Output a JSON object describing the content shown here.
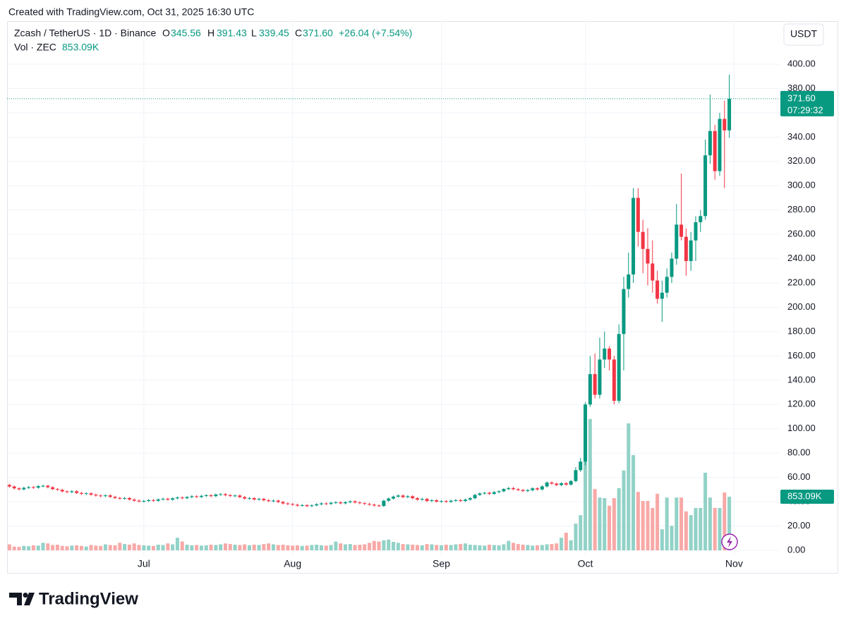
{
  "created": "Created with TradingView.com, Oct 31, 2025 16:30 UTC",
  "brand": "TradingView",
  "currency_button": "USDT",
  "chart_data": {
    "type": "candlestick",
    "symbol": "Zcash / TetherUS · 1D · Binance",
    "ohlc_letters": [
      "O",
      "H",
      "L",
      "C"
    ],
    "last_close_label": "371.60",
    "change": "+26.04 (+7.54%)",
    "volume_name": "Vol · ZEC",
    "last_volume_label": "853.09K",
    "countdown": "07:29:32",
    "up_color": "#089981",
    "down_color": "#f23645",
    "volume_up_color": "#92d2c7",
    "volume_down_color": "#f7a9a7",
    "grid": true,
    "xlim": [
      -0.5,
      160.5
    ],
    "xticks": [
      {
        "value": 28,
        "label": "Jul"
      },
      {
        "value": 59,
        "label": "Aug"
      },
      {
        "value": 90,
        "label": "Sep"
      },
      {
        "value": 120,
        "label": "Oct"
      },
      {
        "value": 151,
        "label": "Nov"
      }
    ],
    "ylim": [
      0,
      435.4
    ],
    "yticks": [
      {
        "value": 0,
        "label": "0.00"
      },
      {
        "value": 20,
        "label": "20.00"
      },
      {
        "value": 40,
        "label": "40.00"
      },
      {
        "value": 60,
        "label": "60.00"
      },
      {
        "value": 80,
        "label": "80.00"
      },
      {
        "value": 100,
        "label": "100.00"
      },
      {
        "value": 120,
        "label": "120.00"
      },
      {
        "value": 140,
        "label": "140.00"
      },
      {
        "value": 160,
        "label": "160.00"
      },
      {
        "value": 180,
        "label": "180.00"
      },
      {
        "value": 200,
        "label": "200.00"
      },
      {
        "value": 220,
        "label": "220.00"
      },
      {
        "value": 240,
        "label": "240.00"
      },
      {
        "value": 260,
        "label": "260.00"
      },
      {
        "value": 280,
        "label": "280.00"
      },
      {
        "value": 300,
        "label": "300.00"
      },
      {
        "value": 320,
        "label": "320.00"
      },
      {
        "value": 340,
        "label": "340.00"
      },
      {
        "value": 360,
        "label": "360.00"
      },
      {
        "value": 380,
        "label": "380.00"
      },
      {
        "value": 400,
        "label": "400.00"
      }
    ],
    "y2lim": [
      0,
      8420000
    ],
    "open": [
      53.8,
      52.5,
      51.0,
      50.2,
      51.4,
      52.0,
      51.6,
      52.8,
      53.1,
      51.9,
      50.4,
      49.8,
      48.5,
      47.9,
      48.6,
      47.2,
      46.5,
      46.9,
      45.8,
      45.1,
      44.6,
      45.2,
      44.0,
      43.1,
      42.5,
      43.0,
      41.8,
      40.9,
      40.2,
      40.6,
      41.3,
      40.8,
      41.9,
      42.4,
      41.7,
      42.8,
      43.5,
      42.9,
      43.8,
      44.5,
      43.9,
      44.8,
      45.3,
      44.6,
      45.9,
      46.2,
      45.4,
      44.7,
      45.1,
      43.8,
      42.6,
      42.9,
      41.8,
      42.3,
      41.2,
      40.5,
      40.9,
      39.8,
      38.6,
      38.1,
      37.5,
      36.8,
      37.2,
      36.4,
      37.0,
      37.9,
      38.6,
      38.2,
      39.1,
      39.5,
      38.7,
      39.6,
      40.3,
      39.4,
      38.8,
      38.2,
      37.6,
      36.9,
      36.5,
      40.8,
      42.6,
      44.2,
      45.1,
      43.8,
      44.5,
      42.9,
      41.7,
      42.3,
      40.6,
      41.2,
      40.1,
      40.5,
      39.9,
      40.8,
      41.3,
      40.6,
      41.7,
      42.9,
      45.6,
      46.8,
      47.3,
      46.5,
      47.9,
      48.6,
      50.4,
      51.2,
      50.3,
      49.6,
      48.8,
      49.5,
      51.0,
      50.1,
      52.6,
      55.8,
      54.9,
      53.7,
      55.2,
      54.1,
      57.0,
      66.0,
      73,
      120,
      145,
      128,
      157,
      166,
      157,
      123,
      178,
      215,
      227,
      290,
      262,
      248,
      236,
      222,
      207,
      212,
      225,
      240,
      268,
      258,
      238,
      255,
      270,
      275,
      325,
      345,
      312,
      355,
      345.56
    ],
    "high": [
      54.7,
      53.4,
      51.9,
      52.3,
      52.9,
      52.9,
      53.7,
      54.0,
      54.0,
      52.8,
      51.3,
      50.7,
      49.4,
      49.5,
      49.5,
      48.1,
      47.8,
      47.8,
      46.7,
      46.0,
      46.1,
      46.1,
      44.9,
      44.0,
      43.9,
      43.9,
      42.7,
      41.8,
      41.5,
      42.2,
      42.2,
      42.8,
      43.3,
      43.3,
      43.7,
      44.4,
      44.4,
      44.7,
      45.4,
      45.4,
      45.7,
      46.2,
      46.2,
      46.8,
      47.1,
      47.1,
      46.3,
      46.0,
      46.0,
      44.7,
      43.8,
      43.8,
      43.2,
      43.2,
      42.1,
      41.8,
      41.8,
      40.7,
      39.5,
      39.0,
      38.4,
      38.1,
      38.1,
      37.9,
      38.8,
      39.5,
      39.5,
      40.0,
      40.4,
      40.4,
      40.5,
      41.2,
      41.2,
      40.3,
      39.7,
      39.1,
      38.5,
      37.8,
      41.7,
      43.5,
      45.1,
      46.0,
      46.0,
      45.4,
      45.4,
      43.8,
      43.2,
      43.2,
      42.1,
      42.1,
      41.4,
      41.4,
      41.7,
      42.2,
      42.2,
      42.6,
      43.8,
      46.5,
      47.7,
      48.2,
      48.2,
      48.8,
      49.5,
      51.3,
      52.1,
      52.1,
      51.2,
      50.5,
      50.4,
      51.9,
      51.9,
      53.5,
      56.7,
      56.7,
      55.8,
      56.1,
      56.1,
      57.9,
      68.5,
      76.0,
      122,
      160,
      162,
      175,
      180,
      168,
      160,
      186,
      225,
      245,
      298,
      298,
      272,
      265,
      255,
      230,
      222,
      232,
      245,
      285,
      310,
      265,
      262,
      275,
      280,
      338,
      375,
      350,
      360,
      370,
      391.43
    ],
    "low": [
      51.6,
      50.1,
      49.3,
      49.3,
      50.5,
      50.7,
      50.7,
      51.9,
      51.0,
      49.5,
      48.9,
      47.6,
      47.0,
      47.0,
      46.3,
      45.6,
      45.6,
      44.9,
      44.2,
      43.7,
      43.7,
      43.1,
      42.2,
      41.6,
      41.6,
      40.9,
      40.0,
      39.3,
      39.3,
      39.7,
      39.9,
      39.9,
      41.0,
      40.8,
      40.8,
      41.9,
      42.0,
      42.0,
      42.9,
      43.0,
      43.0,
      43.9,
      43.7,
      43.7,
      45.0,
      44.5,
      43.8,
      43.8,
      42.9,
      41.7,
      41.7,
      40.9,
      40.9,
      40.3,
      39.6,
      39.6,
      38.9,
      37.7,
      37.2,
      36.6,
      35.9,
      35.9,
      35.5,
      35.5,
      36.1,
      37.0,
      37.3,
      37.3,
      38.2,
      37.8,
      37.8,
      38.7,
      38.5,
      37.9,
      37.3,
      36.7,
      36.0,
      35.6,
      35.6,
      39.9,
      41.7,
      43.3,
      42.9,
      42.9,
      42.0,
      40.8,
      40.8,
      39.7,
      39.7,
      39.2,
      39.2,
      39.0,
      39.0,
      39.9,
      39.7,
      39.7,
      40.8,
      42.0,
      44.7,
      45.9,
      45.6,
      45.6,
      47.0,
      47.7,
      49.5,
      49.4,
      48.7,
      47.9,
      47.9,
      48.6,
      49.2,
      49.2,
      51.7,
      54.0,
      52.8,
      52.8,
      53.2,
      53.2,
      56.0,
      64.5,
      70,
      118,
      125,
      125,
      150,
      148,
      120,
      121,
      148,
      208,
      220,
      250,
      228,
      218,
      212,
      203,
      188,
      208,
      220,
      235,
      255,
      226,
      230,
      238,
      262,
      272,
      318,
      305,
      308,
      298,
      339.45
    ],
    "close": [
      52.5,
      51.0,
      50.2,
      51.4,
      52.0,
      51.6,
      52.8,
      53.1,
      51.9,
      50.4,
      49.8,
      48.5,
      47.9,
      48.6,
      47.2,
      46.5,
      46.9,
      45.8,
      45.1,
      44.6,
      45.2,
      44.0,
      43.1,
      42.5,
      43.0,
      41.8,
      40.9,
      40.2,
      40.6,
      41.3,
      40.8,
      41.9,
      42.4,
      41.7,
      42.8,
      43.5,
      42.9,
      43.8,
      44.5,
      43.9,
      44.8,
      45.3,
      44.6,
      45.9,
      46.2,
      45.4,
      44.7,
      45.1,
      43.8,
      42.6,
      42.9,
      41.8,
      42.3,
      41.2,
      40.5,
      40.9,
      39.8,
      38.6,
      38.1,
      37.5,
      36.8,
      37.2,
      36.4,
      37.0,
      37.9,
      38.6,
      38.2,
      39.1,
      39.5,
      38.7,
      39.6,
      40.3,
      39.4,
      38.8,
      38.2,
      37.6,
      36.9,
      36.5,
      40.8,
      42.6,
      44.2,
      45.1,
      43.8,
      44.5,
      42.9,
      41.7,
      42.3,
      40.6,
      41.2,
      40.1,
      40.5,
      39.9,
      40.8,
      41.3,
      40.6,
      41.7,
      42.9,
      45.6,
      46.8,
      47.3,
      46.5,
      47.9,
      48.6,
      50.4,
      51.2,
      50.3,
      49.6,
      48.8,
      49.5,
      51.0,
      50.1,
      52.6,
      55.8,
      54.9,
      53.7,
      55.2,
      54.1,
      57.0,
      66.0,
      73.0,
      120,
      145,
      128,
      157,
      166,
      157,
      123,
      178,
      215,
      227,
      290,
      262,
      248,
      236,
      222,
      207,
      212,
      225,
      240,
      268,
      258,
      238,
      255,
      270,
      275,
      325,
      345,
      312,
      355,
      345.56,
      371.6
    ],
    "volume": [
      95000,
      60000,
      55000,
      70000,
      65000,
      80000,
      75000,
      120000,
      110000,
      85000,
      90000,
      70000,
      65000,
      75000,
      80000,
      70000,
      60000,
      85000,
      75000,
      70000,
      95000,
      85000,
      80000,
      120000,
      100000,
      90000,
      110000,
      85000,
      80000,
      75000,
      70000,
      90000,
      85000,
      110000,
      95000,
      200000,
      140000,
      90000,
      80000,
      85000,
      75000,
      80000,
      90000,
      85000,
      95000,
      110000,
      100000,
      90000,
      85000,
      95000,
      80000,
      90000,
      85000,
      100000,
      110000,
      95000,
      85000,
      90000,
      80000,
      75000,
      80000,
      70000,
      75000,
      85000,
      90000,
      80000,
      75000,
      85000,
      140000,
      110000,
      95000,
      100000,
      85000,
      90000,
      95000,
      120000,
      150000,
      140000,
      160000,
      170000,
      135000,
      120000,
      100000,
      95000,
      90000,
      85000,
      80000,
      100000,
      95000,
      85000,
      80000,
      90000,
      85000,
      95000,
      100000,
      110000,
      90000,
      85000,
      80000,
      75000,
      90000,
      85000,
      80000,
      95000,
      150000,
      120000,
      100000,
      90000,
      85000,
      75000,
      80000,
      85000,
      95000,
      100000,
      110000,
      200000,
      280000,
      160000,
      425000,
      560000,
      1800000,
      2090000,
      975000,
      840000,
      830000,
      710000,
      830000,
      990000,
      1270000,
      2020000,
      1515000,
      930000,
      785000,
      785000,
      675000,
      900000,
      335000,
      840000,
      390000,
      840000,
      840000,
      620000,
      560000,
      675000,
      675000,
      1235000,
      840000,
      675000,
      675000,
      920000,
      853090
    ]
  }
}
